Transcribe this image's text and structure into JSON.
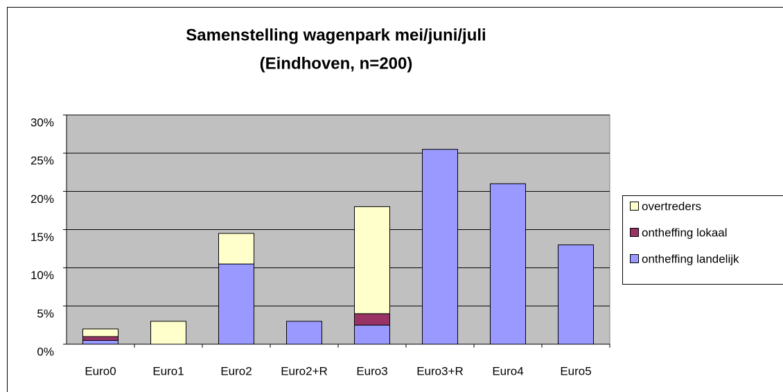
{
  "chart_data": {
    "type": "stacked_bar",
    "title": [
      "Samenstelling wagenpark mei/juni/juli",
      "(Eindhoven, n=200)"
    ],
    "categories": [
      "Euro0",
      "Euro1",
      "Euro2",
      "Euro2+R",
      "Euro3",
      "Euro3+R",
      "Euro4",
      "Euro5"
    ],
    "series": [
      {
        "name": "ontheffing landelijk",
        "color": "#9999ff",
        "values": [
          0.5,
          0,
          10.5,
          3,
          2.5,
          25.5,
          21,
          13
        ]
      },
      {
        "name": "ontheffing lokaal",
        "color": "#993366",
        "values": [
          0.5,
          0,
          0,
          0,
          1.5,
          0,
          0,
          0
        ]
      },
      {
        "name": "overtreders",
        "color": "#ffffcc",
        "values": [
          1,
          3,
          4,
          0,
          14,
          0,
          0,
          0
        ]
      }
    ],
    "ylim": [
      0,
      30
    ],
    "yticks": [
      {
        "value": 0,
        "label": "0%"
      },
      {
        "value": 5,
        "label": "5%"
      },
      {
        "value": 10,
        "label": "10%"
      },
      {
        "value": 15,
        "label": "15%"
      },
      {
        "value": 20,
        "label": "20%"
      },
      {
        "value": 25,
        "label": "25%"
      },
      {
        "value": 30,
        "label": "30%"
      }
    ],
    "grid": true,
    "legend": "right",
    "plot_background": "#c0c0c0"
  }
}
